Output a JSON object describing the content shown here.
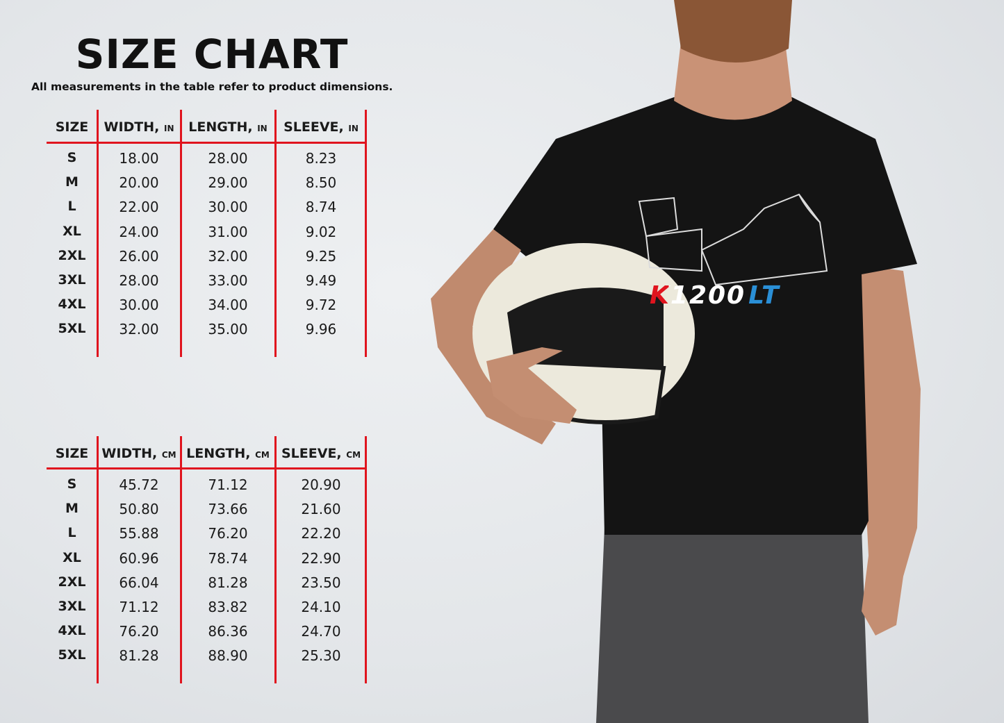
{
  "title": "SIZE CHART",
  "subtitle": "All measurements in the table refer to product dimensions.",
  "tables": [
    {
      "headers": [
        {
          "label": "SIZE",
          "unit": ""
        },
        {
          "label": "WIDTH,",
          "unit": "IN"
        },
        {
          "label": "LENGTH,",
          "unit": "IN"
        },
        {
          "label": "SLEEVE,",
          "unit": "IN"
        }
      ],
      "rows": [
        [
          "S",
          "18.00",
          "28.00",
          "8.23"
        ],
        [
          "M",
          "20.00",
          "29.00",
          "8.50"
        ],
        [
          "L",
          "22.00",
          "30.00",
          "8.74"
        ],
        [
          "XL",
          "24.00",
          "31.00",
          "9.02"
        ],
        [
          "2XL",
          "26.00",
          "32.00",
          "9.25"
        ],
        [
          "3XL",
          "28.00",
          "33.00",
          "9.49"
        ],
        [
          "4XL",
          "30.00",
          "34.00",
          "9.72"
        ],
        [
          "5XL",
          "32.00",
          "35.00",
          "9.96"
        ]
      ]
    },
    {
      "headers": [
        {
          "label": "SIZE",
          "unit": ""
        },
        {
          "label": "WIDTH,",
          "unit": "CM"
        },
        {
          "label": "LENGTH,",
          "unit": "CM"
        },
        {
          "label": "SLEEVE,",
          "unit": "CM"
        }
      ],
      "rows": [
        [
          "S",
          "45.72",
          "71.12",
          "20.90"
        ],
        [
          "M",
          "50.80",
          "73.66",
          "21.60"
        ],
        [
          "L",
          "55.88",
          "76.20",
          "22.20"
        ],
        [
          "XL",
          "60.96",
          "78.74",
          "22.90"
        ],
        [
          "2XL",
          "66.04",
          "81.28",
          "23.50"
        ],
        [
          "3XL",
          "71.12",
          "83.82",
          "24.10"
        ],
        [
          "4XL",
          "76.20",
          "86.36",
          "24.70"
        ],
        [
          "5XL",
          "81.28",
          "88.90",
          "25.30"
        ]
      ]
    }
  ],
  "shirt_print": {
    "model": "K1200",
    "suffix": "LT"
  },
  "colors": {
    "grid": "#e0141e",
    "shirt": "#141414",
    "print_red": "#e0141e",
    "print_white": "#ffffff",
    "print_blue": "#2a8fd6"
  }
}
